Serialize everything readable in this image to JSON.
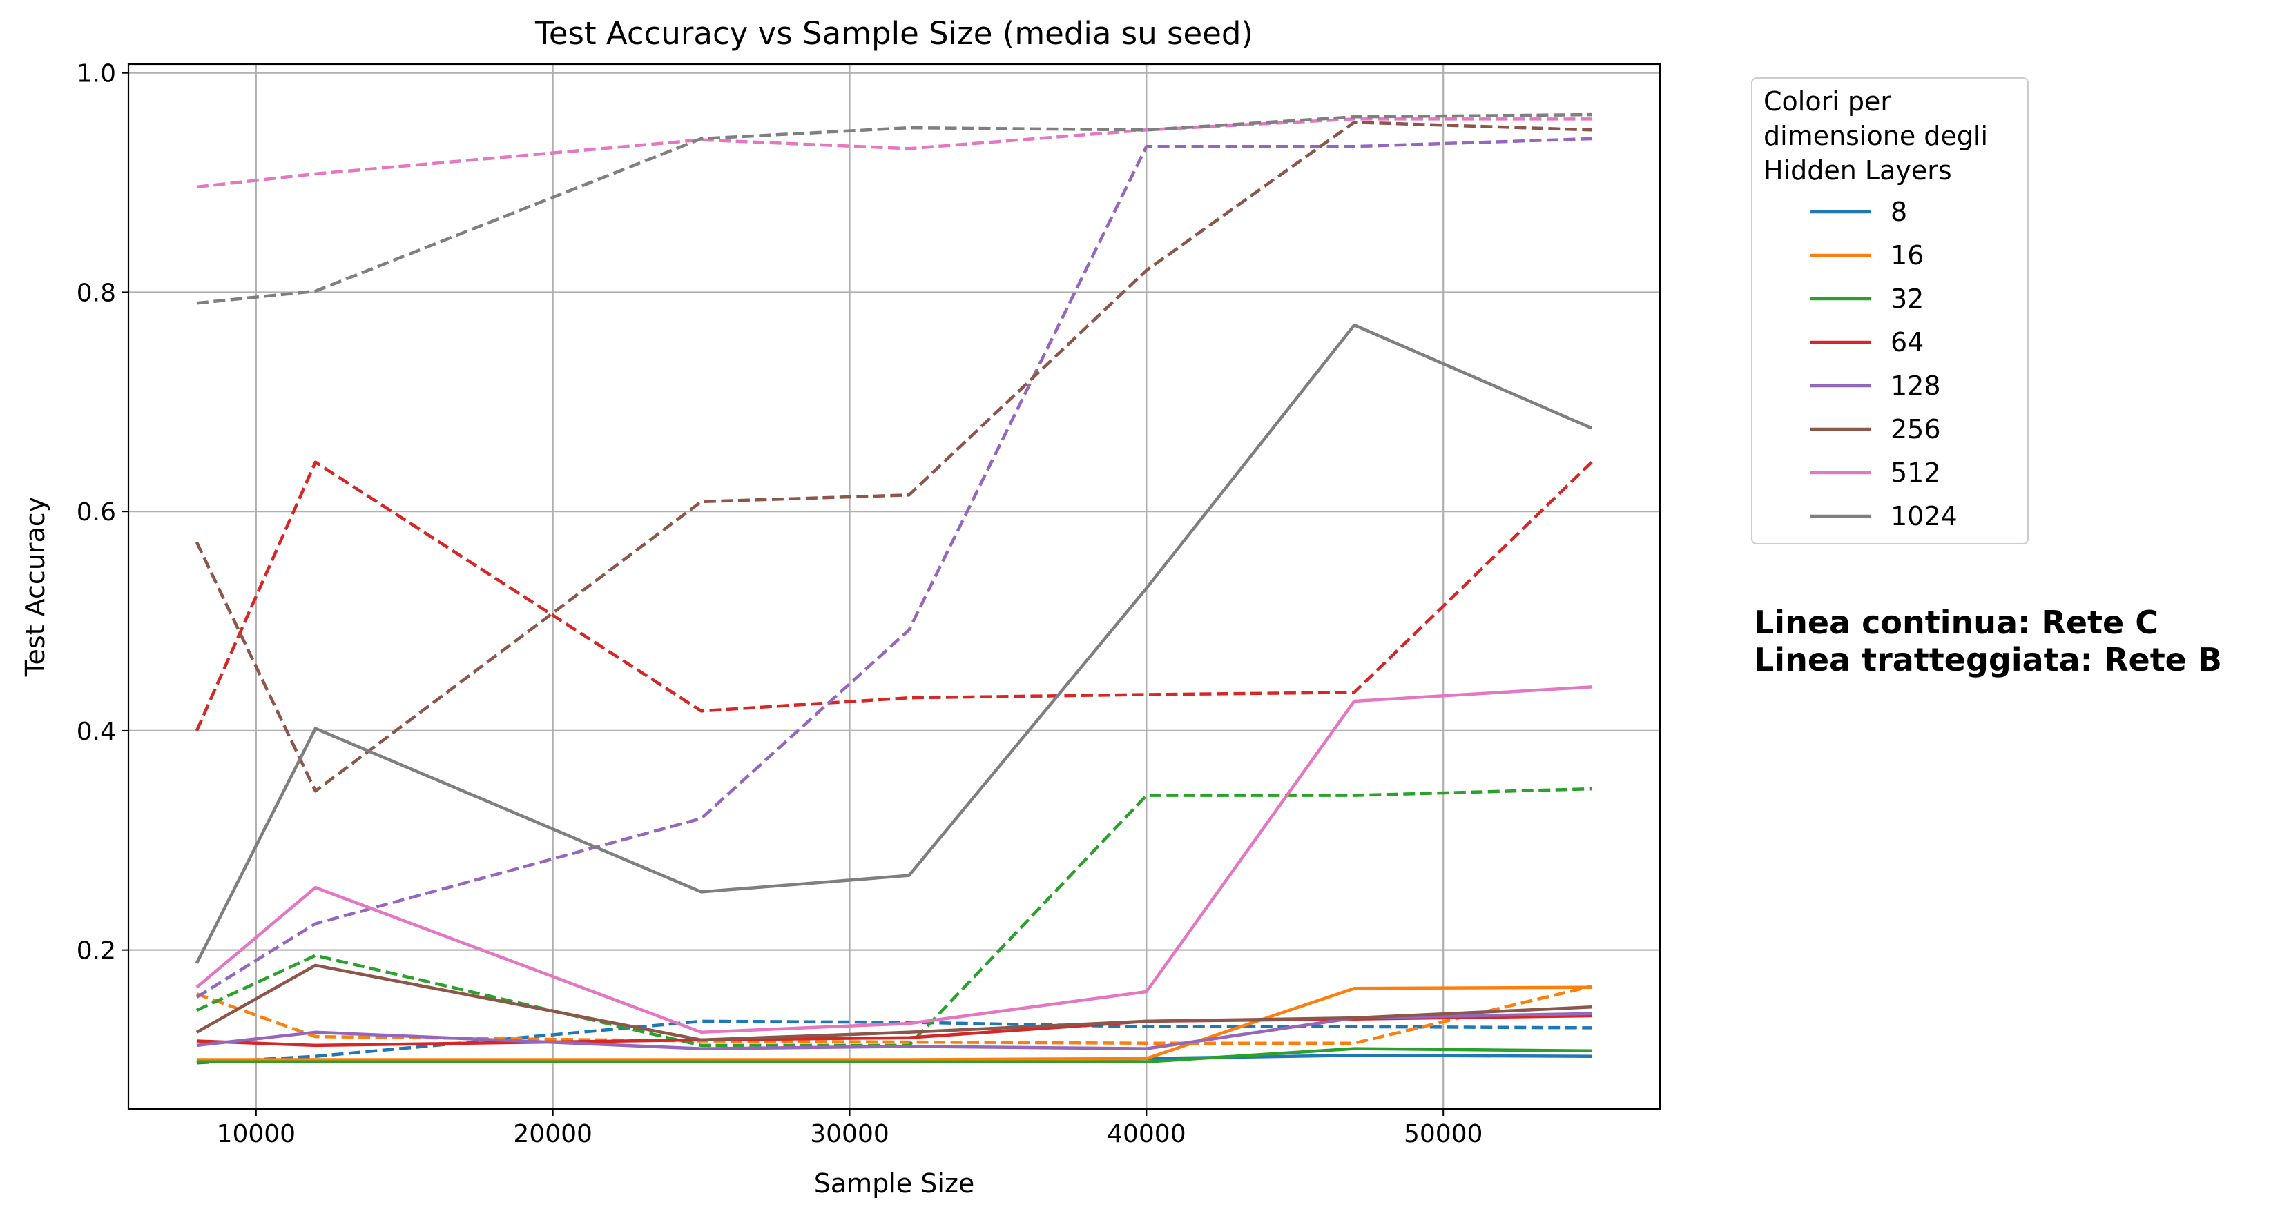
{
  "chart_data": {
    "type": "line",
    "title": "Test Accuracy vs Sample Size (media su seed)",
    "xlabel": "Sample Size",
    "ylabel": "Test Accuracy",
    "xlim": [
      5700,
      57300
    ],
    "ylim": [
      0.055,
      1.008
    ],
    "x_ticks": [
      10000,
      20000,
      30000,
      40000,
      50000
    ],
    "y_ticks": [
      0.2,
      0.4,
      0.6,
      0.8,
      1.0
    ],
    "y_tick_labels": [
      "0.2",
      "0.4",
      "0.6",
      "0.8",
      "1.0"
    ],
    "grid": true,
    "x": [
      8000,
      12000,
      25000,
      32000,
      40000,
      47000,
      55000
    ],
    "legend": {
      "title_lines": [
        "Colori per",
        "dimensione degli",
        "Hidden Layers"
      ],
      "placement": "outside-right"
    },
    "annotations": [
      "Linea continua: Rete C",
      "Linea tratteggiata: Rete B"
    ],
    "series": [
      {
        "name": "8",
        "color": "#1f77b4",
        "rete_c": [
          0.098,
          0.098,
          0.098,
          0.098,
          0.101,
          0.104,
          0.103
        ],
        "rete_b": [
          0.097,
          0.103,
          0.135,
          0.134,
          0.13,
          0.13,
          0.129
        ]
      },
      {
        "name": "16",
        "color": "#ff7f0e",
        "rete_c": [
          0.1,
          0.1,
          0.1,
          0.1,
          0.101,
          0.165,
          0.166
        ],
        "rete_b": [
          0.16,
          0.121,
          0.117,
          0.116,
          0.115,
          0.115,
          0.167
        ]
      },
      {
        "name": "32",
        "color": "#2ca02c",
        "rete_c": [
          0.098,
          0.098,
          0.098,
          0.098,
          0.098,
          0.11,
          0.108
        ],
        "rete_b": [
          0.145,
          0.195,
          0.113,
          0.113,
          0.341,
          0.341,
          0.347
        ]
      },
      {
        "name": "64",
        "color": "#d62728",
        "rete_c": [
          0.117,
          0.113,
          0.118,
          0.12,
          0.135,
          0.137,
          0.14
        ],
        "rete_b": [
          0.4,
          0.645,
          0.418,
          0.43,
          0.433,
          0.435,
          0.645
        ]
      },
      {
        "name": "128",
        "color": "#9467bd",
        "rete_c": [
          0.113,
          0.125,
          0.11,
          0.112,
          0.11,
          0.138,
          0.142
        ],
        "rete_b": [
          0.157,
          0.224,
          0.32,
          0.492,
          0.933,
          0.933,
          0.94
        ]
      },
      {
        "name": "256",
        "color": "#8c564b",
        "rete_c": [
          0.125,
          0.186,
          0.118,
          0.125,
          0.135,
          0.138,
          0.148
        ],
        "rete_b": [
          0.572,
          0.345,
          0.609,
          0.615,
          0.82,
          0.955,
          0.948
        ]
      },
      {
        "name": "512",
        "color": "#e377c2",
        "rete_c": [
          0.166,
          0.257,
          0.125,
          0.133,
          0.162,
          0.427,
          0.44
        ],
        "rete_b": [
          0.896,
          0.908,
          0.939,
          0.931,
          0.948,
          0.958,
          0.958
        ]
      },
      {
        "name": "1024",
        "color": "#7f7f7f",
        "rete_c": [
          0.188,
          0.402,
          0.253,
          0.268,
          0.53,
          0.77,
          0.676
        ],
        "rete_b": [
          0.79,
          0.801,
          0.94,
          0.95,
          0.948,
          0.96,
          0.962
        ]
      }
    ]
  }
}
